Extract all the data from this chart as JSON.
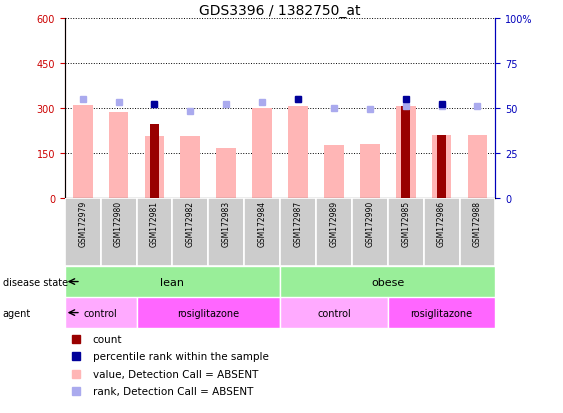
{
  "title": "GDS3396 / 1382750_at",
  "samples": [
    "GSM172979",
    "GSM172980",
    "GSM172981",
    "GSM172982",
    "GSM172983",
    "GSM172984",
    "GSM172987",
    "GSM172989",
    "GSM172990",
    "GSM172985",
    "GSM172986",
    "GSM172988"
  ],
  "value_absent": [
    310,
    285,
    205,
    205,
    165,
    300,
    305,
    175,
    180,
    305,
    210,
    210
  ],
  "count_values": [
    null,
    null,
    245,
    null,
    null,
    null,
    null,
    null,
    null,
    305,
    210,
    null
  ],
  "rank_absent_pct": [
    55,
    53,
    52,
    48,
    52,
    53,
    55,
    50,
    49,
    51,
    51,
    51
  ],
  "percentile_rank_pct": [
    null,
    null,
    52,
    null,
    null,
    null,
    55,
    null,
    null,
    55,
    52,
    null
  ],
  "disease_state_groups": [
    {
      "label": "lean",
      "start": 0,
      "end": 5
    },
    {
      "label": "obese",
      "start": 6,
      "end": 11
    }
  ],
  "agent_groups": [
    {
      "label": "control",
      "start": 0,
      "end": 1,
      "color": "#FFAAFF"
    },
    {
      "label": "rosiglitazone",
      "start": 2,
      "end": 5,
      "color": "#FF66FF"
    },
    {
      "label": "control",
      "start": 6,
      "end": 8,
      "color": "#FFAAFF"
    },
    {
      "label": "rosiglitazone",
      "start": 9,
      "end": 11,
      "color": "#FF66FF"
    }
  ],
  "ylim_left": [
    0,
    600
  ],
  "ylim_right": [
    0,
    100
  ],
  "yticks_left": [
    0,
    150,
    300,
    450,
    600
  ],
  "yticks_right": [
    0,
    25,
    50,
    75,
    100
  ],
  "pink_color": "#FFB6B6",
  "darkred_color": "#990000",
  "blue_dark": "#000099",
  "blue_light": "#AAAAEE",
  "green_color": "#99EE99",
  "gray_color": "#CCCCCC",
  "red_axis_color": "#CC0000",
  "blue_axis_color": "#0000BB",
  "fig_width": 5.63,
  "fig_height": 4.14,
  "dpi": 100
}
